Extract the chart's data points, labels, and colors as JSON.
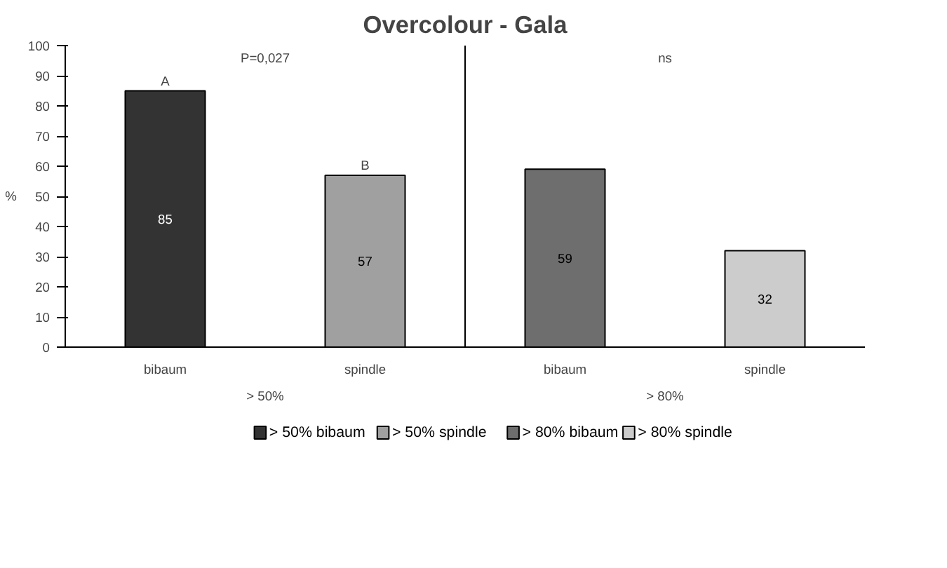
{
  "chart_data": {
    "type": "bar",
    "title": "Overcolour - Gala",
    "ylabel": "%",
    "categories": [
      "bibaum",
      "spindle",
      "bibaum",
      "spindle"
    ],
    "series": [
      {
        "name": "> 50%  bibaum",
        "color": "#333333",
        "values": [
          85,
          null,
          null,
          null
        ]
      },
      {
        "name": "> 50%  spindle",
        "color": "#a0a0a0",
        "values": [
          null,
          57,
          null,
          null
        ]
      },
      {
        "name": "> 80% bibaum",
        "color": "#6e6e6e",
        "values": [
          null,
          null,
          59,
          null
        ]
      },
      {
        "name": "> 80% spindle",
        "color": "#cccccc",
        "values": [
          null,
          null,
          null,
          32
        ]
      }
    ],
    "annotations": [
      {
        "text": "A",
        "y": 85
      },
      {
        "text": "B",
        "y": 57
      },
      "P=0,027",
      "ns",
      "> 50%",
      "> 80%"
    ],
    "ylim": [
      0,
      100
    ],
    "yticks": [
      0,
      10,
      20,
      30,
      40,
      50,
      60,
      70,
      80,
      90,
      100
    ],
    "data_labels": true,
    "legend": "bottom"
  }
}
